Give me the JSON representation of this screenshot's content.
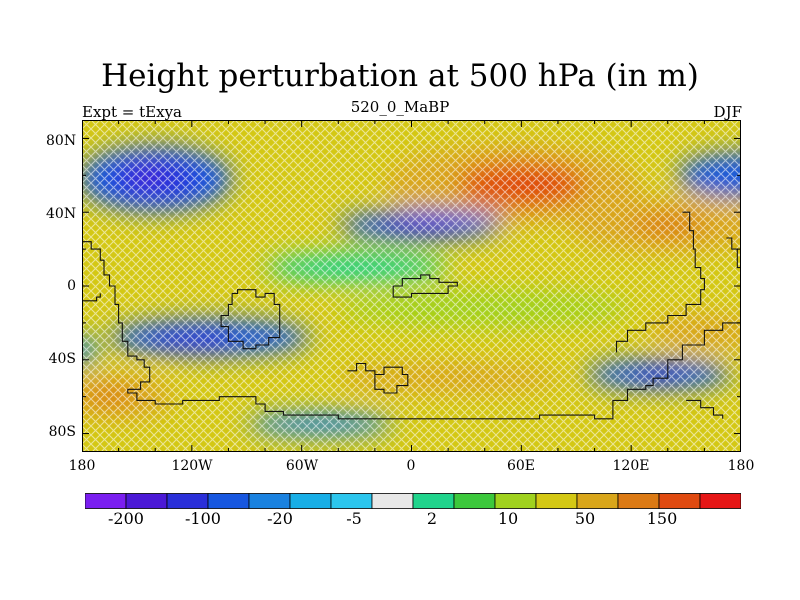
{
  "title": "Height perturbation at 500 hPa (in m)",
  "subtitle_left": "Expt = tExya",
  "subtitle_center": "520_0_MaBP",
  "subtitle_right": "DJF",
  "lat_ticks": [
    "80N",
    "40N",
    "0",
    "40S",
    "80S"
  ],
  "lon_ticks": [
    "180",
    "120W",
    "60W",
    "0",
    "60E",
    "120E",
    "180"
  ],
  "colorbar": {
    "colors": [
      "#7a1ef0",
      "#4b19d6",
      "#2a2fd9",
      "#1757e0",
      "#1a82e0",
      "#18aee6",
      "#2cc6ee",
      "#e8e8e8",
      "#20d48c",
      "#3cc83c",
      "#a0d21e",
      "#d4c814",
      "#d9a61a",
      "#dc7a14",
      "#e04a10",
      "#e61616"
    ],
    "labels": [
      "-200",
      "-100",
      "-20",
      "-5",
      "2",
      "10",
      "50",
      "150"
    ]
  },
  "field": {
    "background": "#d4c814",
    "blobs": [
      {
        "color": "#d9a61a",
        "cx": 55,
        "cy": 55,
        "rx": 70,
        "ry": 22
      },
      {
        "color": "#e04a10",
        "cx": 60,
        "cy": 55,
        "rx": 35,
        "ry": 12
      },
      {
        "color": "#1757e0",
        "cx": -140,
        "cy": 58,
        "rx": 42,
        "ry": 18
      },
      {
        "color": "#2a2fd9",
        "cx": -140,
        "cy": 58,
        "rx": 24,
        "ry": 10
      },
      {
        "color": "#4b19d6",
        "cx": -145,
        "cy": 60,
        "rx": 10,
        "ry": 5
      },
      {
        "color": "#1757e0",
        "cx": 5,
        "cy": 33,
        "rx": 45,
        "ry": 8
      },
      {
        "color": "#2a2fd9",
        "cx": 5,
        "cy": 32,
        "rx": 25,
        "ry": 5
      },
      {
        "color": "#1757e0",
        "cx": -110,
        "cy": -28,
        "rx": 55,
        "ry": 10
      },
      {
        "color": "#2a2fd9",
        "cx": -120,
        "cy": -30,
        "rx": 25,
        "ry": 5
      },
      {
        "color": "#1757e0",
        "cx": 135,
        "cy": -48,
        "rx": 40,
        "ry": 8
      },
      {
        "color": "#2a2fd9",
        "cx": 135,
        "cy": -48,
        "rx": 15,
        "ry": 4
      },
      {
        "color": "#1757e0",
        "cx": 180,
        "cy": 60,
        "rx": 35,
        "ry": 12
      },
      {
        "color": "#d9a61a",
        "cx": 140,
        "cy": 33,
        "rx": 55,
        "ry": 15
      },
      {
        "color": "#dc7a14",
        "cx": 140,
        "cy": 33,
        "rx": 20,
        "ry": 6
      },
      {
        "color": "#d9a61a",
        "cx": -160,
        "cy": -60,
        "rx": 30,
        "ry": 12
      },
      {
        "color": "#dc7a14",
        "cx": -165,
        "cy": -60,
        "rx": 15,
        "ry": 5
      },
      {
        "color": "#d9a61a",
        "cx": 20,
        "cy": -50,
        "rx": 60,
        "ry": 8
      },
      {
        "color": "#d9a61a",
        "cx": 160,
        "cy": -25,
        "rx": 30,
        "ry": 10
      },
      {
        "color": "#1a82e0",
        "cx": -180,
        "cy": -35,
        "rx": 8,
        "ry": 8
      },
      {
        "color": "#1a82e0",
        "cx": -50,
        "cy": -75,
        "rx": 40,
        "ry": 6
      },
      {
        "color": "#20d48c",
        "cx": -30,
        "cy": 10,
        "rx": 50,
        "ry": 8
      },
      {
        "color": "#a0d21e",
        "cx": 40,
        "cy": -12,
        "rx": 80,
        "ry": 10
      }
    ],
    "coast": [
      [
        [
          -180,
          24
        ],
        [
          -175,
          20
        ],
        [
          -170,
          14
        ],
        [
          -168,
          6
        ],
        [
          -165,
          0
        ],
        [
          -162,
          -10
        ],
        [
          -160,
          -20
        ],
        [
          -158,
          -30
        ],
        [
          -155,
          -38
        ],
        [
          -150,
          -40
        ],
        [
          -146,
          -44
        ],
        [
          -143,
          -52
        ],
        [
          -148,
          -56
        ],
        [
          -155,
          -58
        ],
        [
          -150,
          -62
        ],
        [
          -140,
          -64
        ],
        [
          -125,
          -62
        ],
        [
          -105,
          -60
        ],
        [
          -90,
          -60
        ],
        [
          -85,
          -64
        ],
        [
          -80,
          -68
        ],
        [
          -70,
          -70
        ],
        [
          -40,
          -72
        ],
        [
          20,
          -72
        ],
        [
          50,
          -72
        ],
        [
          70,
          -70
        ],
        [
          100,
          -72
        ],
        [
          110,
          -70
        ],
        [
          110,
          -62
        ],
        [
          118,
          -56
        ],
        [
          128,
          -54
        ],
        [
          132,
          -50
        ],
        [
          140,
          -40
        ],
        [
          148,
          -32
        ],
        [
          160,
          -24
        ],
        [
          170,
          -20
        ],
        [
          180,
          -18
        ]
      ],
      [
        [
          -180,
          -8
        ],
        [
          -176,
          -8
        ],
        [
          -172,
          -6
        ],
        [
          -170,
          -4
        ]
      ],
      [
        [
          -98,
          -4
        ],
        [
          -95,
          -2
        ],
        [
          -88,
          -2
        ],
        [
          -85,
          -6
        ],
        [
          -80,
          -4
        ],
        [
          -75,
          -10
        ],
        [
          -72,
          -20
        ],
        [
          -72,
          -28
        ],
        [
          -78,
          -32
        ],
        [
          -85,
          -34
        ],
        [
          -92,
          -30
        ],
        [
          -100,
          -22
        ],
        [
          -104,
          -16
        ],
        [
          -100,
          -10
        ],
        [
          -98,
          -4
        ]
      ],
      [
        [
          -20,
          -48
        ],
        [
          -15,
          -44
        ],
        [
          -10,
          -44
        ],
        [
          -5,
          -48
        ],
        [
          -2,
          -54
        ],
        [
          -8,
          -58
        ],
        [
          -15,
          -56
        ],
        [
          -20,
          -48
        ]
      ],
      [
        [
          -35,
          -46
        ],
        [
          -30,
          -42
        ],
        [
          -25,
          -46
        ],
        [
          -20,
          -48
        ]
      ],
      [
        [
          -10,
          0
        ],
        [
          -5,
          4
        ],
        [
          5,
          6
        ],
        [
          10,
          4
        ],
        [
          15,
          2
        ],
        [
          25,
          0
        ],
        [
          20,
          -4
        ],
        [
          10,
          -4
        ],
        [
          0,
          -6
        ],
        [
          -10,
          0
        ]
      ],
      [
        [
          148,
          40
        ],
        [
          152,
          38
        ],
        [
          152,
          30
        ],
        [
          154,
          20
        ],
        [
          155,
          10
        ],
        [
          158,
          4
        ],
        [
          160,
          -2
        ],
        [
          158,
          -10
        ],
        [
          150,
          -16
        ],
        [
          140,
          -20
        ],
        [
          128,
          -24
        ],
        [
          118,
          -30
        ],
        [
          112,
          -36
        ]
      ],
      [
        [
          172,
          26
        ],
        [
          175,
          20
        ],
        [
          178,
          10
        ],
        [
          180,
          4
        ]
      ],
      [
        [
          150,
          -62
        ],
        [
          158,
          -66
        ],
        [
          165,
          -70
        ],
        [
          170,
          -72
        ]
      ]
    ]
  }
}
